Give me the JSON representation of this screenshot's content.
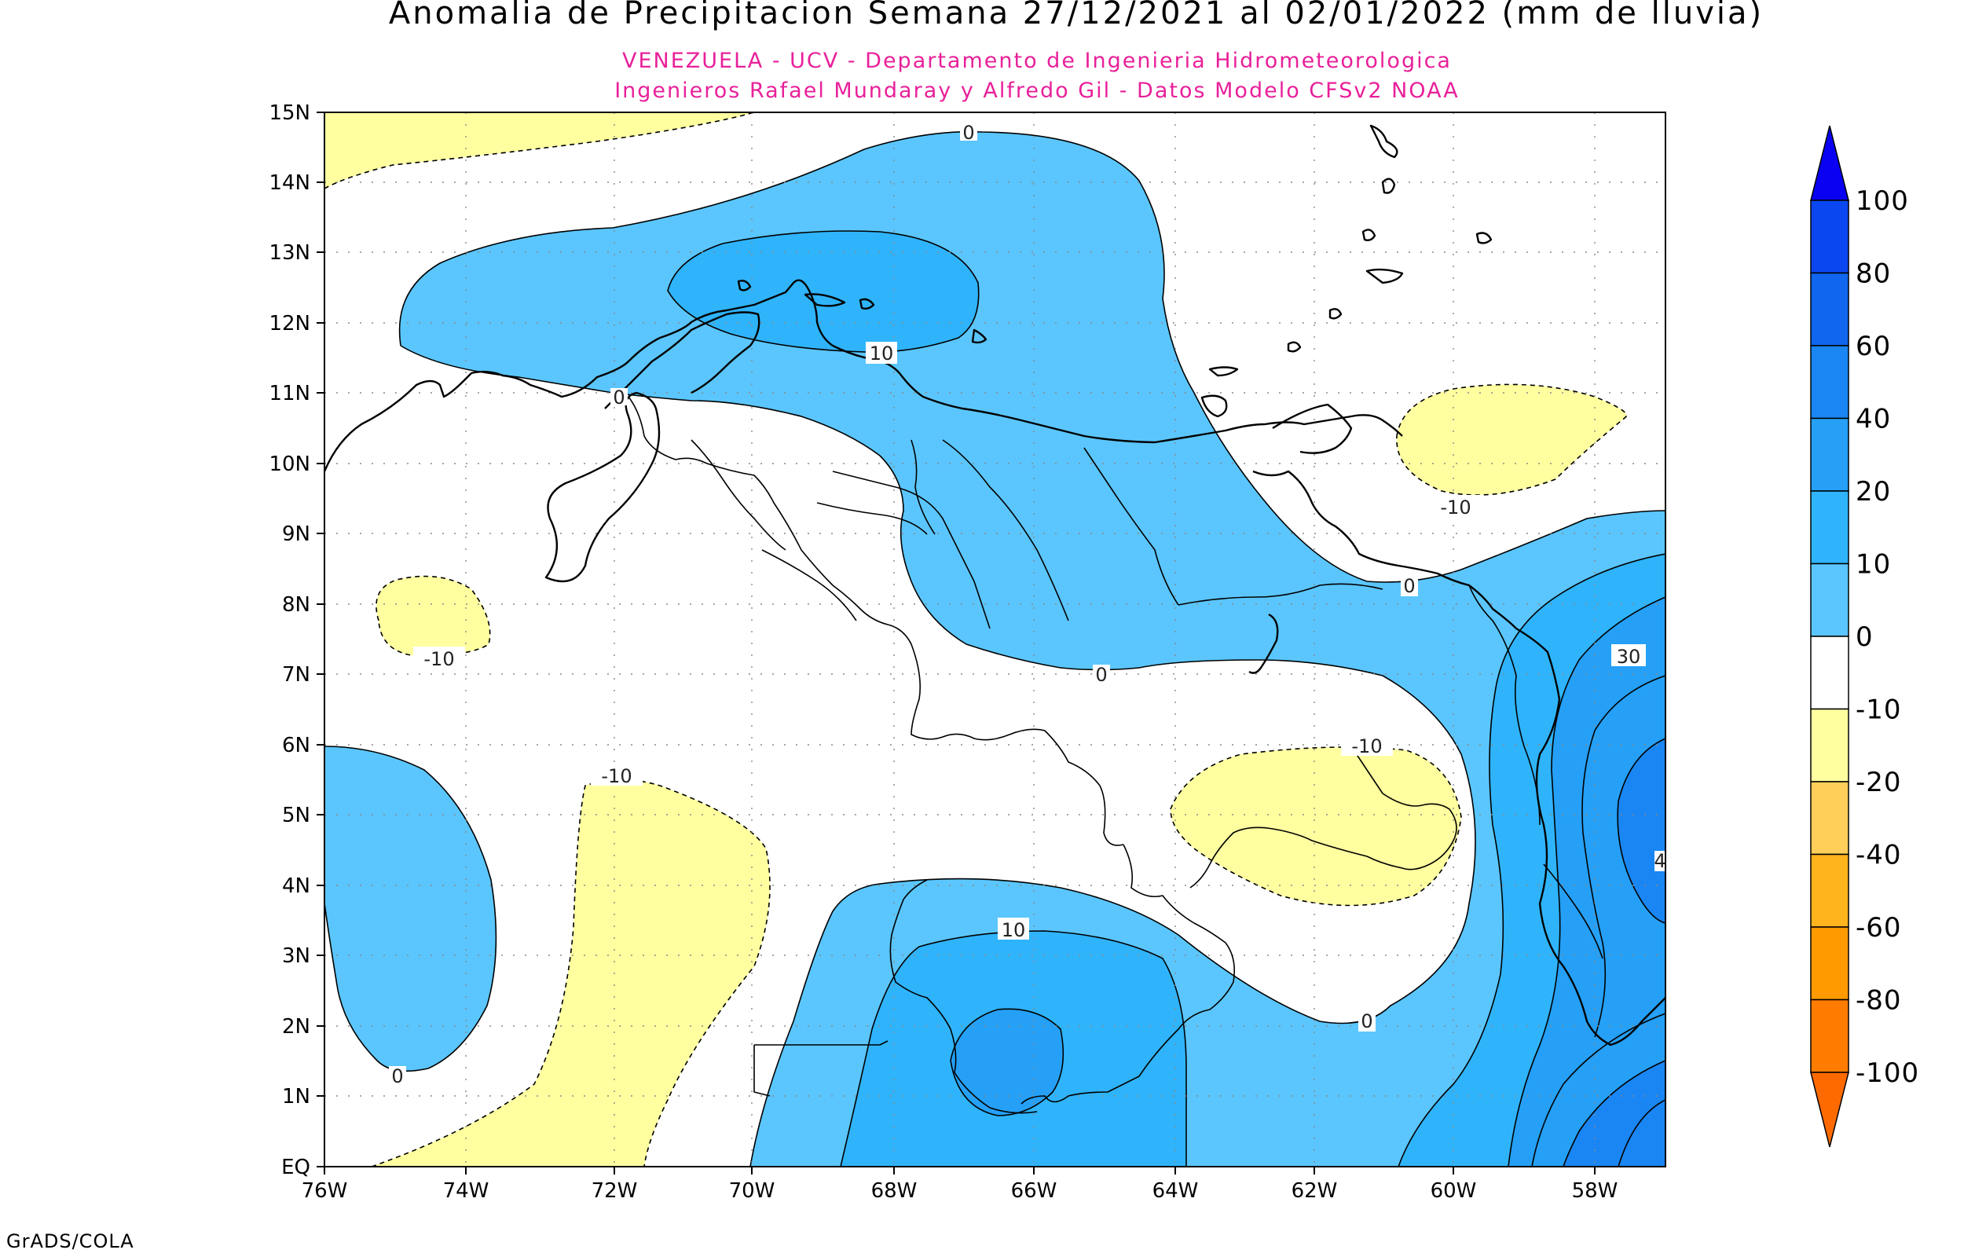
{
  "title": "Anomalia de Precipitacion Semana 27/12/2021 al 02/01/2022 (mm de lluvia)",
  "subtitle_line1": "VENEZUELA - UCV - Departamento de Ingenieria Hidrometeorologica",
  "subtitle_line2": "Ingenieros Rafael Mundaray y Alfredo Gil - Datos Modelo CFSv2 NOAA",
  "credit": "GrADS/COLA",
  "lat_ticks": [
    "15N",
    "14N",
    "13N",
    "12N",
    "11N",
    "10N",
    "9N",
    "8N",
    "7N",
    "6N",
    "5N",
    "4N",
    "3N",
    "2N",
    "1N",
    "EQ"
  ],
  "lon_ticks": [
    "76W",
    "74W",
    "72W",
    "70W",
    "68W",
    "66W",
    "64W",
    "62W",
    "60W",
    "58W"
  ],
  "colorbar": {
    "labels": [
      "100",
      "80",
      "60",
      "40",
      "20",
      "10",
      "0",
      "-10",
      "-20",
      "-40",
      "-60",
      "-80",
      "-100"
    ],
    "colors": [
      "#0a00f2",
      "#0b47f0",
      "#1066ee",
      "#1a86f3",
      "#25a0f6",
      "#2fb4fb",
      "#5bc6fd",
      "#ffffff",
      "#ffffa0",
      "#ffcf59",
      "#ffb41e",
      "#ff9a00",
      "#ff7c00",
      "#ff6a00"
    ]
  },
  "contour_labels": {
    "c0_north": "0",
    "c10_north": "10",
    "c0_west": "0",
    "cneg10_east": "-10",
    "c0_east": "0",
    "cneg10_west": "-10",
    "c0_central": "0",
    "c30_east": "30",
    "cneg10_south": "-10",
    "cneg10_guyana": "-10",
    "c10_south": "10",
    "c0_southwest": "0",
    "c0_south": "0",
    "c40_edge": "4"
  }
}
